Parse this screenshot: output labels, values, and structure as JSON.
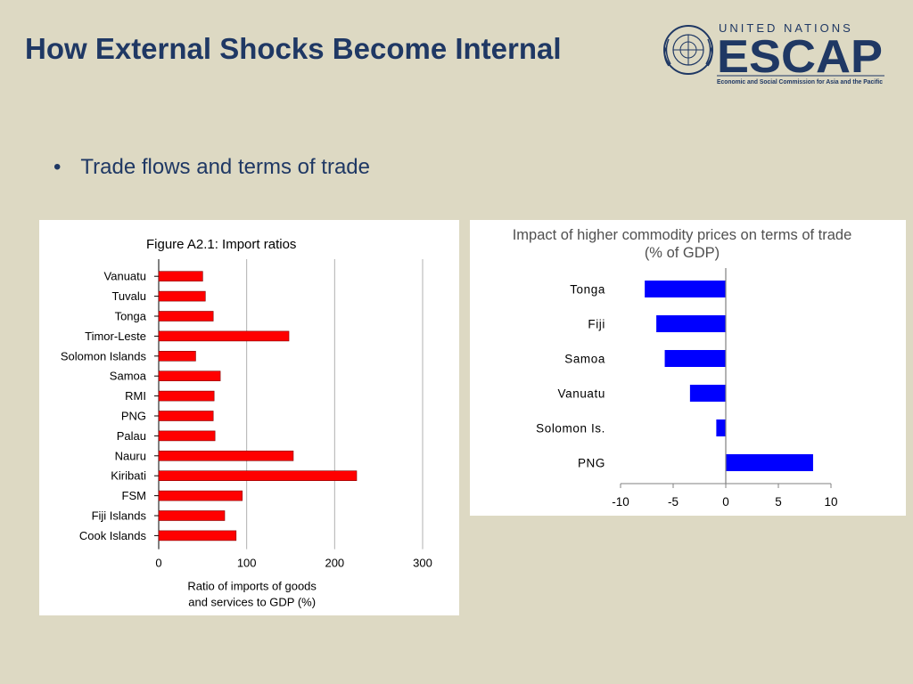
{
  "slide": {
    "title": "How External Shocks Become Internal",
    "bullet_marker": "•",
    "bullet_text": "Trade flows and terms of trade"
  },
  "logo": {
    "top_text": "UNITED NATIONS",
    "main_text": "ESCAP",
    "sub_text": "Economic and Social Commission for Asia and the Pacific",
    "emblem": "un-emblem-icon",
    "color": "#1f3864"
  },
  "chart_data": [
    {
      "type": "bar",
      "orientation": "horizontal",
      "title": "Figure A2.1: Import ratios",
      "xlabel": "Ratio of imports of goods and services to GDP (%)",
      "xlabel_lines": [
        "Ratio of imports of goods",
        "and services to GDP (%)"
      ],
      "ylabel": "",
      "categories": [
        "Vanuatu",
        "Tuvalu",
        "Tonga",
        "Timor-Leste",
        "Solomon Islands",
        "Samoa",
        "RMI",
        "PNG",
        "Palau",
        "Nauru",
        "Kiribati",
        "FSM",
        "Fiji Islands",
        "Cook Islands"
      ],
      "values": [
        50,
        53,
        62,
        148,
        42,
        70,
        63,
        62,
        64,
        153,
        225,
        95,
        75,
        88
      ],
      "xlim": [
        0,
        300
      ],
      "xticks": [
        0,
        100,
        200,
        300
      ],
      "grid": true,
      "bar_color": "#ff0000"
    },
    {
      "type": "bar",
      "orientation": "horizontal",
      "title": "Impact of higher commodity prices on terms of trade (% of GDP)",
      "title_lines": [
        "Impact of higher commodity prices on terms of trade",
        "(% of GDP)"
      ],
      "xlabel": "",
      "ylabel": "",
      "categories": [
        "Tonga",
        "Fiji",
        "Samoa",
        "Vanuatu",
        "Solomon Is.",
        "PNG"
      ],
      "values": [
        -7.7,
        -6.6,
        -5.8,
        -3.4,
        -0.9,
        8.3
      ],
      "xlim": [
        -10,
        10
      ],
      "xticks": [
        -10,
        -5,
        0,
        5,
        10
      ],
      "grid": false,
      "bar_color": "#0000ff"
    }
  ]
}
